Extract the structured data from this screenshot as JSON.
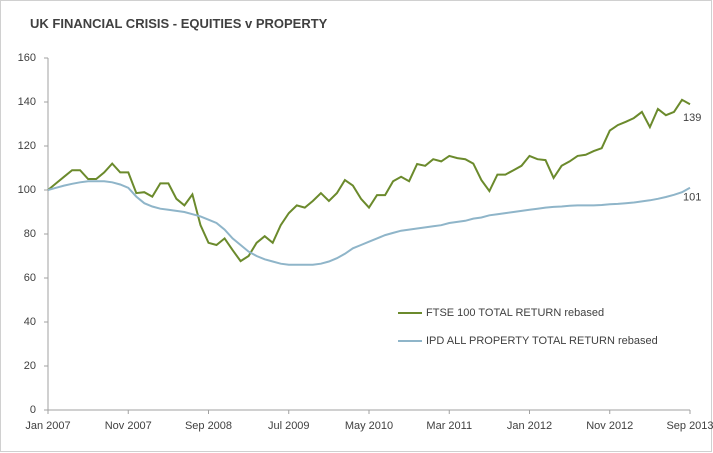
{
  "chart_data": {
    "type": "line",
    "title": "UK FINANCIAL CRISIS - EQUITIES v PROPERTY",
    "categories": [
      "Jan 2007",
      null,
      null,
      null,
      null,
      null,
      null,
      null,
      null,
      null,
      "Nov 2007",
      null,
      null,
      null,
      null,
      null,
      null,
      null,
      null,
      null,
      "Sep 2008",
      null,
      null,
      null,
      null,
      null,
      null,
      null,
      null,
      null,
      "Jul 2009",
      null,
      null,
      null,
      null,
      null,
      null,
      null,
      null,
      null,
      "May 2010",
      null,
      null,
      null,
      null,
      null,
      null,
      null,
      null,
      null,
      "Mar 2011",
      null,
      null,
      null,
      null,
      null,
      null,
      null,
      null,
      null,
      "Jan 2012",
      null,
      null,
      null,
      null,
      null,
      null,
      null,
      null,
      null,
      "Nov 2012",
      null,
      null,
      null,
      null,
      null,
      null,
      null,
      null,
      null,
      "Sep 2013"
    ],
    "series": [
      {
        "name": "FTSE 100 TOTAL RETURN rebased",
        "color": "#6b8a2c",
        "values": [
          100,
          103,
          106,
          109,
          109,
          105,
          105,
          108,
          112,
          108,
          108,
          98.6,
          99,
          97,
          103,
          103,
          96,
          93,
          98,
          84,
          76,
          75,
          78,
          72.7,
          67.7,
          70,
          76,
          79,
          76,
          84,
          89.5,
          93,
          92,
          95,
          98.6,
          95,
          98.6,
          104.5,
          102,
          96,
          92,
          97.7,
          97.7,
          104,
          106,
          104,
          111.8,
          111,
          114,
          113,
          115.5,
          114.5,
          114,
          112,
          104.5,
          99.5,
          107,
          107,
          109,
          111,
          115.5,
          114,
          113.6,
          105.5,
          111,
          113,
          115.5,
          116,
          117.7,
          119,
          127,
          129.5,
          131,
          132.7,
          135.5,
          128.6,
          136.8,
          134,
          135.5,
          141,
          139
        ]
      },
      {
        "name": "IPD ALL PROPERTY TOTAL RETURN rebased",
        "color": "#8fb5c9",
        "values": [
          100,
          101,
          102,
          102.8,
          103.5,
          104,
          104,
          104,
          103.5,
          102.5,
          101,
          97,
          94,
          92.5,
          91.5,
          91,
          90.5,
          90,
          89,
          88,
          86.5,
          85,
          82,
          78,
          75,
          72,
          70,
          68.5,
          67.5,
          66.5,
          66,
          66,
          66,
          66,
          66.5,
          67.5,
          69,
          71,
          73.5,
          75,
          76.5,
          78,
          79.5,
          80.5,
          81.5,
          82,
          82.5,
          83,
          83.5,
          84,
          85,
          85.5,
          86,
          87,
          87.5,
          88.5,
          89,
          89.5,
          90,
          90.5,
          91,
          91.5,
          92,
          92.3,
          92.5,
          92.8,
          93,
          93,
          93,
          93.2,
          93.5,
          93.7,
          94,
          94.3,
          94.8,
          95.3,
          96,
          96.8,
          97.8,
          99,
          101
        ]
      }
    ],
    "ylim": [
      0,
      160
    ],
    "yticks": [
      0,
      20,
      40,
      60,
      80,
      100,
      120,
      140,
      160
    ],
    "grid": false,
    "legend": "lower-right"
  }
}
